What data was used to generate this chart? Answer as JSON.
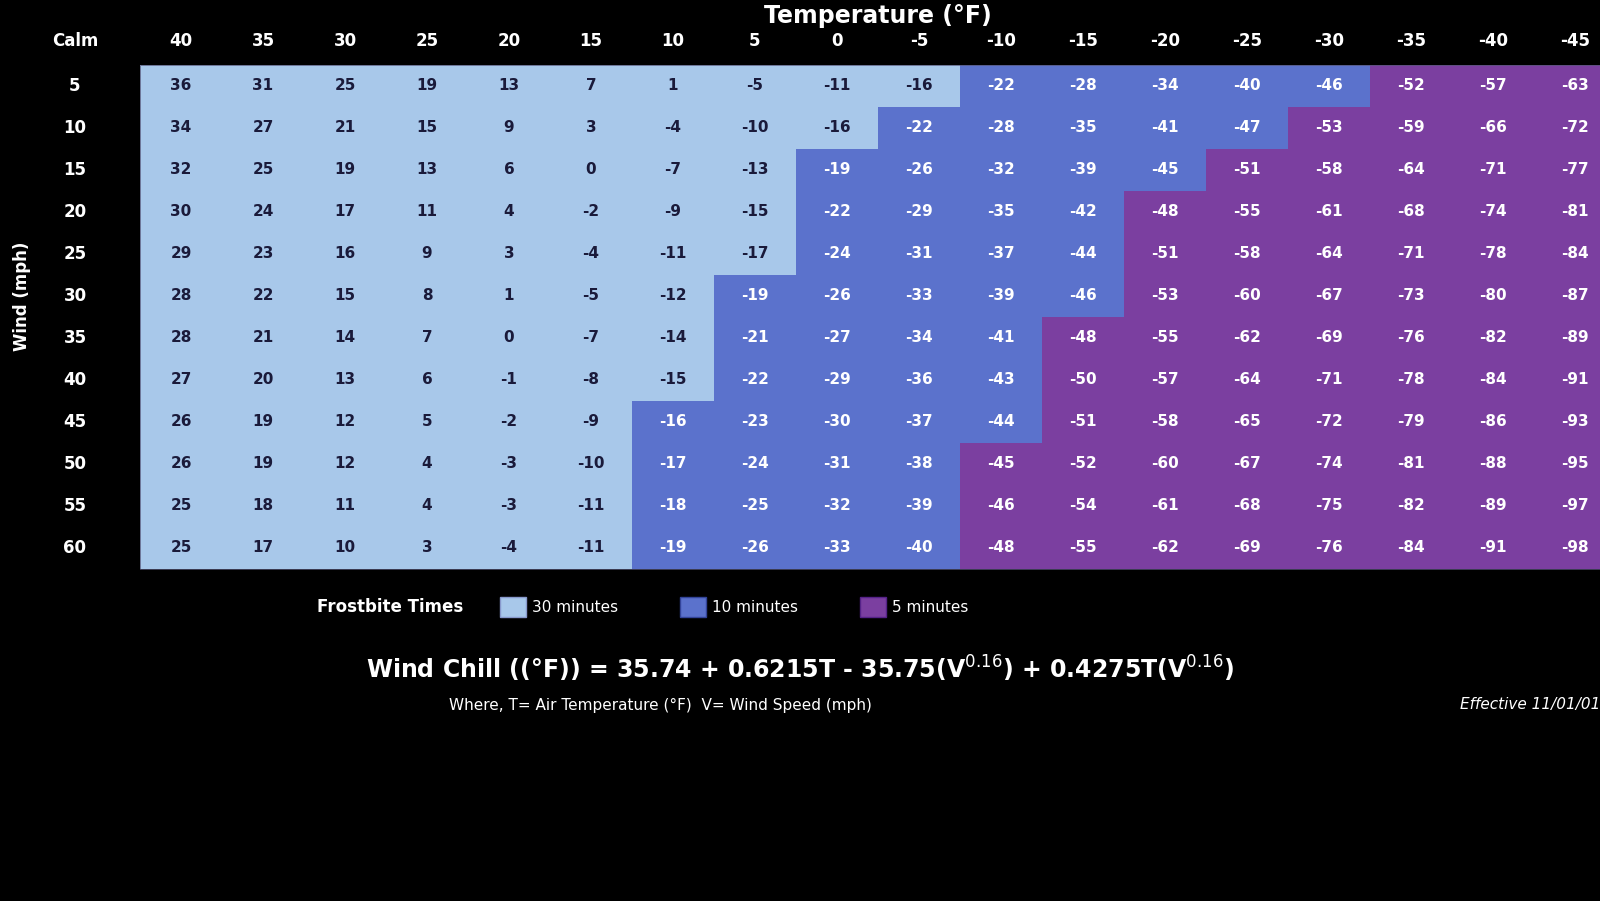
{
  "title": "Temperature (°F)",
  "wind_label": "Wind (mph)",
  "temp_cols": [
    40,
    35,
    30,
    25,
    20,
    15,
    10,
    5,
    0,
    -5,
    -10,
    -15,
    -20,
    -25,
    -30,
    -35,
    -40,
    -45
  ],
  "wind_rows": [
    5,
    10,
    15,
    20,
    25,
    30,
    35,
    40,
    45,
    50,
    55,
    60
  ],
  "table_data": [
    [
      36,
      31,
      25,
      19,
      13,
      7,
      1,
      -5,
      -11,
      -16,
      -22,
      -28,
      -34,
      -40,
      -46,
      -52,
      -57,
      -63
    ],
    [
      34,
      27,
      21,
      15,
      9,
      3,
      -4,
      -10,
      -16,
      -22,
      -28,
      -35,
      -41,
      -47,
      -53,
      -59,
      -66,
      -72
    ],
    [
      32,
      25,
      19,
      13,
      6,
      0,
      -7,
      -13,
      -19,
      -26,
      -32,
      -39,
      -45,
      -51,
      -58,
      -64,
      -71,
      -77
    ],
    [
      30,
      24,
      17,
      11,
      4,
      -2,
      -9,
      -15,
      -22,
      -29,
      -35,
      -42,
      -48,
      -55,
      -61,
      -68,
      -74,
      -81
    ],
    [
      29,
      23,
      16,
      9,
      3,
      -4,
      -11,
      -17,
      -24,
      -31,
      -37,
      -44,
      -51,
      -58,
      -64,
      -71,
      -78,
      -84
    ],
    [
      28,
      22,
      15,
      8,
      1,
      -5,
      -12,
      -19,
      -26,
      -33,
      -39,
      -46,
      -53,
      -60,
      -67,
      -73,
      -80,
      -87
    ],
    [
      28,
      21,
      14,
      7,
      0,
      -7,
      -14,
      -21,
      -27,
      -34,
      -41,
      -48,
      -55,
      -62,
      -69,
      -76,
      -82,
      -89
    ],
    [
      27,
      20,
      13,
      6,
      -1,
      -8,
      -15,
      -22,
      -29,
      -36,
      -43,
      -50,
      -57,
      -64,
      -71,
      -78,
      -84,
      -91
    ],
    [
      26,
      19,
      12,
      5,
      -2,
      -9,
      -16,
      -23,
      -30,
      -37,
      -44,
      -51,
      -58,
      -65,
      -72,
      -79,
      -86,
      -93
    ],
    [
      26,
      19,
      12,
      4,
      -3,
      -10,
      -17,
      -24,
      -31,
      -38,
      -45,
      -52,
      -60,
      -67,
      -74,
      -81,
      -88,
      -95
    ],
    [
      25,
      18,
      11,
      4,
      -3,
      -11,
      -18,
      -25,
      -32,
      -39,
      -46,
      -54,
      -61,
      -68,
      -75,
      -82,
      -89,
      -97
    ],
    [
      25,
      17,
      10,
      3,
      -4,
      -11,
      -19,
      -26,
      -33,
      -40,
      -48,
      -55,
      -62,
      -69,
      -76,
      -84,
      -91,
      -98
    ]
  ],
  "cell_colors": [
    [
      "lb",
      "lb",
      "lb",
      "lb",
      "lb",
      "lb",
      "lb",
      "lb",
      "lb",
      "lb",
      "mb",
      "mb",
      "mb",
      "mb",
      "mb",
      "pu",
      "pu",
      "pu"
    ],
    [
      "lb",
      "lb",
      "lb",
      "lb",
      "lb",
      "lb",
      "lb",
      "lb",
      "lb",
      "mb",
      "mb",
      "mb",
      "mb",
      "mb",
      "pu",
      "pu",
      "pu",
      "pu"
    ],
    [
      "lb",
      "lb",
      "lb",
      "lb",
      "lb",
      "lb",
      "lb",
      "lb",
      "mb",
      "mb",
      "mb",
      "mb",
      "mb",
      "pu",
      "pu",
      "pu",
      "pu",
      "pu"
    ],
    [
      "lb",
      "lb",
      "lb",
      "lb",
      "lb",
      "lb",
      "lb",
      "lb",
      "mb",
      "mb",
      "mb",
      "mb",
      "pu",
      "pu",
      "pu",
      "pu",
      "pu",
      "pu"
    ],
    [
      "lb",
      "lb",
      "lb",
      "lb",
      "lb",
      "lb",
      "lb",
      "lb",
      "mb",
      "mb",
      "mb",
      "mb",
      "pu",
      "pu",
      "pu",
      "pu",
      "pu",
      "pu"
    ],
    [
      "lb",
      "lb",
      "lb",
      "lb",
      "lb",
      "lb",
      "lb",
      "mb",
      "mb",
      "mb",
      "mb",
      "mb",
      "pu",
      "pu",
      "pu",
      "pu",
      "pu",
      "pu"
    ],
    [
      "lb",
      "lb",
      "lb",
      "lb",
      "lb",
      "lb",
      "lb",
      "mb",
      "mb",
      "mb",
      "mb",
      "pu",
      "pu",
      "pu",
      "pu",
      "pu",
      "pu",
      "pu"
    ],
    [
      "lb",
      "lb",
      "lb",
      "lb",
      "lb",
      "lb",
      "lb",
      "mb",
      "mb",
      "mb",
      "mb",
      "pu",
      "pu",
      "pu",
      "pu",
      "pu",
      "pu",
      "pu"
    ],
    [
      "lb",
      "lb",
      "lb",
      "lb",
      "lb",
      "lb",
      "mb",
      "mb",
      "mb",
      "mb",
      "mb",
      "pu",
      "pu",
      "pu",
      "pu",
      "pu",
      "pu",
      "pu"
    ],
    [
      "lb",
      "lb",
      "lb",
      "lb",
      "lb",
      "lb",
      "mb",
      "mb",
      "mb",
      "mb",
      "pu",
      "pu",
      "pu",
      "pu",
      "pu",
      "pu",
      "pu",
      "pu"
    ],
    [
      "lb",
      "lb",
      "lb",
      "lb",
      "lb",
      "lb",
      "mb",
      "mb",
      "mb",
      "mb",
      "pu",
      "pu",
      "pu",
      "pu",
      "pu",
      "pu",
      "pu",
      "pu"
    ],
    [
      "lb",
      "lb",
      "lb",
      "lb",
      "lb",
      "lb",
      "mb",
      "mb",
      "mb",
      "mb",
      "pu",
      "pu",
      "pu",
      "pu",
      "pu",
      "pu",
      "pu",
      "pu"
    ]
  ],
  "color_lb": "#a8c8ea",
  "color_mb": "#5b72cc",
  "color_pu": "#7b3fa0",
  "bg_color": "#000000",
  "formula_text": "Wind Chill (°F) = 35.74 + 0.6215T - 35.75(V°0.16) + 0.4275T(V°0.16)",
  "where_text": "Where, T= Air Temperature (°F)  V= Wind Speed (mph)",
  "effective_text": "Effective 11/01/01",
  "frostbite_label": "Frostbite Times",
  "legend_30": "30 minutes",
  "legend_10": "10 minutes",
  "legend_5": "5 minutes"
}
